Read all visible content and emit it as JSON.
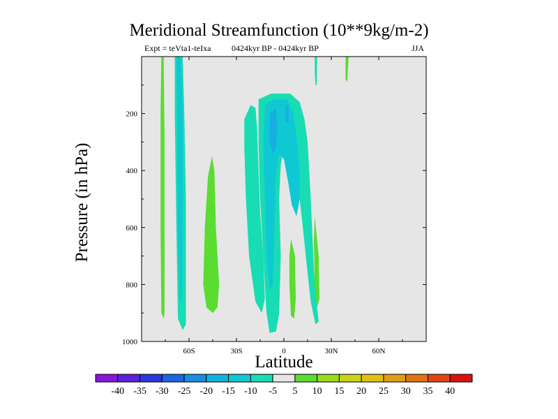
{
  "chart_data": {
    "type": "filled-contour",
    "title": "Meridional Streamfunction (10**9kg/m-2)",
    "left_annotation": "Expt = teVta1-teIxa",
    "center_annotation": "0424kyr BP - 0424kyr BP",
    "right_annotation": "JJA",
    "xlabel": "Latitude",
    "ylabel": "Pressure (in hPa)",
    "x_ticks": [
      {
        "value": -60,
        "label": "60S"
      },
      {
        "value": -30,
        "label": "30S"
      },
      {
        "value": 0,
        "label": "0"
      },
      {
        "value": 30,
        "label": "30N"
      },
      {
        "value": 60,
        "label": "60N"
      }
    ],
    "xlim": [
      -90,
      90
    ],
    "y_ticks": [
      {
        "value": 200,
        "label": "200"
      },
      {
        "value": 400,
        "label": "400"
      },
      {
        "value": 600,
        "label": "600"
      },
      {
        "value": 800,
        "label": "800"
      },
      {
        "value": 1000,
        "label": "1000"
      }
    ],
    "ylim": [
      0,
      1000
    ],
    "background_color": "#e6e6e6",
    "colorbar": {
      "levels": [
        "-40",
        "-35",
        "-30",
        "-25",
        "-20",
        "-15",
        "-10",
        "-5",
        "5",
        "10",
        "15",
        "20",
        "25",
        "30",
        "35",
        "40"
      ],
      "colors": [
        "#8a16d8",
        "#5e22dc",
        "#2a3ad8",
        "#1c66e0",
        "#1a8ee0",
        "#16b0e0",
        "#10c8d4",
        "#18dcb4",
        "#e6e6e6",
        "#5adc30",
        "#9ad81c",
        "#c8d414",
        "#e0c014",
        "#e09e14",
        "#e07414",
        "#e04614",
        "#d81410"
      ]
    },
    "regions": [
      {
        "name": "positive-band-75S",
        "value": 7,
        "color": "#5adc30",
        "points": [
          [
            -77.5,
            0
          ],
          [
            -76,
            0
          ],
          [
            -75.5,
            300
          ],
          [
            -75.5,
            900
          ],
          [
            -76,
            920
          ],
          [
            -77.5,
            900
          ],
          [
            -78,
            600
          ],
          [
            -78,
            200
          ]
        ]
      },
      {
        "name": "negative-band-65S",
        "value": -7,
        "color": "#18dcb4",
        "points": [
          [
            -69,
            0
          ],
          [
            -64,
            0
          ],
          [
            -63,
            200
          ],
          [
            -62,
            500
          ],
          [
            -62,
            940
          ],
          [
            -64,
            960
          ],
          [
            -67,
            920
          ],
          [
            -68,
            600
          ],
          [
            -69,
            200
          ]
        ]
      },
      {
        "name": "negative-core-65S",
        "value": -12,
        "color": "#10c8d4",
        "points": [
          [
            -68,
            0
          ],
          [
            -65,
            0
          ],
          [
            -64,
            200
          ],
          [
            -64,
            600
          ],
          [
            -64.5,
            850
          ],
          [
            -66,
            860
          ],
          [
            -67,
            600
          ],
          [
            -67.5,
            200
          ]
        ]
      },
      {
        "name": "positive-lobe-45S",
        "value": 7,
        "color": "#5adc30",
        "points": [
          [
            -45.5,
            350
          ],
          [
            -44,
            400
          ],
          [
            -43,
            600
          ],
          [
            -41,
            800
          ],
          [
            -42,
            880
          ],
          [
            -45,
            900
          ],
          [
            -49,
            880
          ],
          [
            -51,
            800
          ],
          [
            -50,
            600
          ],
          [
            -48,
            420
          ]
        ]
      },
      {
        "name": "negative-cell-outer",
        "value": -7,
        "color": "#18dcb4",
        "points": [
          [
            -25,
            220
          ],
          [
            -21,
            170
          ],
          [
            -18,
            180
          ],
          [
            -17,
            250
          ],
          [
            -16,
            400
          ],
          [
            -15,
            550
          ],
          [
            -13,
            700
          ],
          [
            -12,
            850
          ],
          [
            -14,
            900
          ],
          [
            -18,
            860
          ],
          [
            -22,
            700
          ],
          [
            -24,
            500
          ],
          [
            -25,
            320
          ]
        ]
      },
      {
        "name": "negative-cell-main",
        "value": -7,
        "color": "#18dcb4",
        "points": [
          [
            -16,
            150
          ],
          [
            -8,
            130
          ],
          [
            4,
            130
          ],
          [
            10,
            160
          ],
          [
            13,
            220
          ],
          [
            15,
            300
          ],
          [
            16,
            400
          ],
          [
            17,
            500
          ],
          [
            19,
            750
          ],
          [
            21,
            880
          ],
          [
            22,
            930
          ],
          [
            20,
            940
          ],
          [
            17,
            860
          ],
          [
            15,
            760
          ],
          [
            12,
            600
          ],
          [
            10,
            500
          ],
          [
            7,
            420
          ],
          [
            4,
            330
          ],
          [
            0,
            320
          ],
          [
            -2,
            380
          ],
          [
            -3,
            500
          ],
          [
            -2,
            700
          ],
          [
            -3,
            900
          ],
          [
            -5,
            965
          ],
          [
            -9,
            970
          ],
          [
            -11,
            900
          ],
          [
            -13,
            700
          ],
          [
            -15,
            500
          ],
          [
            -16,
            300
          ]
        ]
      },
      {
        "name": "negative-cell-inner",
        "value": -12,
        "color": "#10c8d4",
        "points": [
          [
            -12,
            170
          ],
          [
            -6,
            150
          ],
          [
            2,
            150
          ],
          [
            6,
            200
          ],
          [
            8,
            280
          ],
          [
            10,
            400
          ],
          [
            10,
            500
          ],
          [
            8,
            560
          ],
          [
            5,
            520
          ],
          [
            3,
            450
          ],
          [
            0,
            360
          ],
          [
            -3,
            340
          ],
          [
            -5,
            420
          ],
          [
            -6,
            600
          ],
          [
            -7,
            800
          ],
          [
            -9,
            820
          ],
          [
            -11,
            700
          ],
          [
            -12,
            500
          ],
          [
            -13,
            300
          ]
        ]
      },
      {
        "name": "negative-cell-core",
        "value": -17,
        "color": "#16b0e0",
        "points": [
          [
            -9,
            200
          ],
          [
            -5,
            180
          ],
          [
            -4,
            250
          ],
          [
            -5,
            320
          ],
          [
            -7,
            340
          ],
          [
            -9,
            300
          ]
        ]
      },
      {
        "name": "negative-cell-core-north",
        "value": -17,
        "color": "#16b0e0",
        "points": [
          [
            1,
            170
          ],
          [
            3,
            170
          ],
          [
            3,
            230
          ],
          [
            1,
            230
          ]
        ]
      },
      {
        "name": "positive-lobe-5N",
        "value": 7,
        "color": "#5adc30",
        "points": [
          [
            4.5,
            640
          ],
          [
            7,
            700
          ],
          [
            7.5,
            850
          ],
          [
            6.5,
            920
          ],
          [
            4.5,
            910
          ],
          [
            3.5,
            800
          ],
          [
            3.5,
            700
          ]
        ]
      },
      {
        "name": "positive-lobe-20N",
        "value": 7,
        "color": "#5adc30",
        "points": [
          [
            19.5,
            560
          ],
          [
            22,
            700
          ],
          [
            22.5,
            850
          ],
          [
            21,
            880
          ],
          [
            19.5,
            800
          ],
          [
            19,
            650
          ]
        ]
      },
      {
        "name": "negative-band-20N-upper",
        "value": -7,
        "color": "#18dcb4",
        "points": [
          [
            19.5,
            0
          ],
          [
            21,
            0
          ],
          [
            20.8,
            100
          ],
          [
            20,
            100
          ],
          [
            19.6,
            60
          ]
        ]
      },
      {
        "name": "positive-band-40N-upper",
        "value": 7,
        "color": "#5adc30",
        "points": [
          [
            39,
            0
          ],
          [
            41,
            0
          ],
          [
            40,
            90
          ],
          [
            39,
            80
          ]
        ]
      }
    ]
  }
}
